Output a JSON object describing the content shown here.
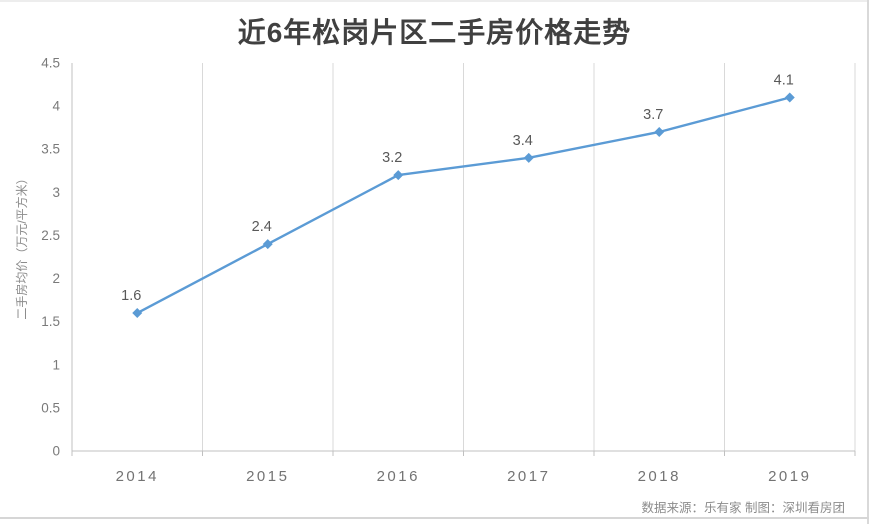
{
  "page": {
    "source_note": "数据来源：乐有家 制图：深圳看房团"
  },
  "chart_data": {
    "type": "line",
    "title": "近6年松岗片区二手房价格走势",
    "xlabel": "",
    "ylabel": "二手房均价（万元/平方米）",
    "categories": [
      "2014",
      "2015",
      "2016",
      "2017",
      "2018",
      "2019"
    ],
    "values": [
      1.6,
      2.4,
      3.2,
      3.4,
      3.7,
      4.1
    ],
    "data_labels": [
      "1.6",
      "2.4",
      "3.2",
      "3.4",
      "3.7",
      "4.1"
    ],
    "ylim": [
      0,
      4.5
    ],
    "yticks": [
      "0",
      "0.5",
      "1",
      "1.5",
      "2",
      "2.5",
      "3",
      "3.5",
      "4",
      "4.5"
    ],
    "grid": "vertical-only",
    "legend": "none",
    "marker": "diamond",
    "colors": {
      "line": "#5B9BD5",
      "gridline": "#d9d9d9",
      "axis": "#c0c0c0",
      "title_text": "#404040",
      "tick_text": "#7a7a7a",
      "label_text": "#595959"
    }
  }
}
